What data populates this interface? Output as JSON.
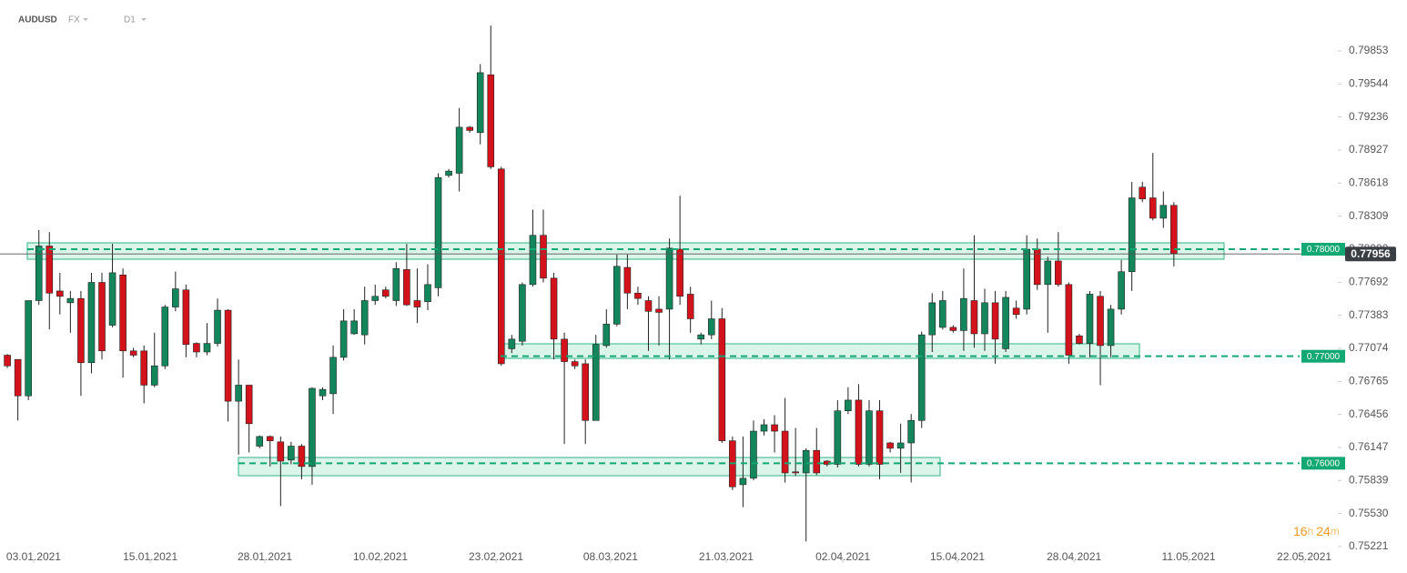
{
  "header": {
    "symbol": "AUDUSD",
    "market": "FX",
    "timeframe": "D1"
  },
  "countdown": [
    "16",
    "h",
    "24",
    "m"
  ],
  "chart_data": {
    "type": "candlestick",
    "up_color": "#13865c",
    "down_color": "#d3121b",
    "xlim": [
      -0.7,
      126.6
    ],
    "ylim": [
      0.75102,
      0.80329
    ],
    "xticks": [
      {
        "value": 2.5,
        "label": "03.01.2021"
      },
      {
        "value": 13.6,
        "label": "15.01.2021"
      },
      {
        "value": 24.5,
        "label": "28.01.2021"
      },
      {
        "value": 35.5,
        "label": "10.02.2021"
      },
      {
        "value": 46.5,
        "label": "23.02.2021"
      },
      {
        "value": 57.4,
        "label": "08.03.2021"
      },
      {
        "value": 68.4,
        "label": "21.03.2021"
      },
      {
        "value": 79.5,
        "label": "02.04.2021"
      },
      {
        "value": 90.4,
        "label": "15.04.2021"
      },
      {
        "value": 101.5,
        "label": "28.04.2021"
      },
      {
        "value": 112.4,
        "label": "11.05.2021"
      },
      {
        "value": 123.4,
        "label": "22.05.2021"
      }
    ],
    "yticks": [
      0.79853,
      0.79544,
      0.79236,
      0.78927,
      0.78618,
      0.78309,
      {
        "value": 0.78,
        "label": "0.78000"
      },
      0.77692,
      0.77383,
      0.77074,
      0.76765,
      0.76456,
      0.76147,
      0.75839,
      {
        "value": 0.7553,
        "label": "0.75530"
      },
      0.75221
    ],
    "levels": [
      {
        "value": 0.78,
        "label": "0.78000"
      },
      {
        "value": 0.77,
        "label": "0.77000"
      },
      {
        "value": 0.76,
        "label": "0.76000"
      }
    ],
    "level_color": "#12a873",
    "last_price": 0.77956,
    "open": [
      0.7701,
      0.7697,
      0.7663,
      0.7752,
      0.7803,
      0.7761,
      0.775,
      0.7754,
      0.7694,
      0.7769,
      0.7729,
      0.7776,
      0.7705,
      0.7705,
      0.7673,
      0.7691,
      0.7746,
      0.7762,
      0.7712,
      0.7704,
      0.7712,
      0.7743,
      0.7658,
      0.7673,
      0.7616,
      0.7625,
      0.762,
      0.7603,
      0.7616,
      0.7597,
      0.7663,
      0.7665,
      0.7699,
      0.7721,
      0.772,
      0.7752,
      0.7762,
      0.7752,
      0.7781,
      0.7752,
      0.7751,
      0.7764,
      0.7869,
      0.7871,
      0.7914,
      0.7909,
      0.7963,
      0.7875,
      0.7707,
      0.7714,
      0.7767,
      0.7813,
      0.7773,
      0.7716,
      0.7695,
      0.7693,
      0.764,
      0.771,
      0.773,
      0.7783,
      0.7759,
      0.7752,
      0.7744,
      0.7744,
      0.78,
      0.7758,
      0.7716,
      0.772,
      0.7735,
      0.7621,
      0.758,
      0.7586,
      0.763,
      0.7636,
      0.763,
      0.7592,
      0.7591,
      0.7612,
      0.7602,
      0.7599,
      0.7649,
      0.7659,
      0.7599,
      0.7649,
      0.7619,
      0.7614,
      0.7619,
      0.764,
      0.772,
      0.7727,
      0.7727,
      0.7724,
      0.7752,
      0.7721,
      0.775,
      0.7707,
      0.7745,
      0.7744,
      0.78,
      0.7767,
      0.7789,
      0.7767,
      0.7719,
      0.7712,
      0.7756,
      0.771,
      0.7744,
      0.7779,
      0.7858,
      0.7848,
      0.7829,
      0.7841
    ],
    "high": [
      0.7702,
      0.7697,
      0.7752,
      0.7818,
      0.7816,
      0.7778,
      0.7761,
      0.7761,
      0.7778,
      0.7778,
      0.7805,
      0.7782,
      0.7708,
      0.771,
      0.7722,
      0.7748,
      0.7779,
      0.7767,
      0.7713,
      0.7731,
      0.7754,
      0.7744,
      0.7697,
      0.7673,
      0.7626,
      0.7626,
      0.7625,
      0.762,
      0.7618,
      0.7671,
      0.7671,
      0.771,
      0.7744,
      0.7744,
      0.7765,
      0.7767,
      0.7765,
      0.7788,
      0.7805,
      0.7782,
      0.7786,
      0.7871,
      0.7875,
      0.7932,
      0.7915,
      0.7973,
      0.8009,
      0.7877,
      0.772,
      0.7769,
      0.7837,
      0.7837,
      0.7778,
      0.7722,
      0.7697,
      0.7697,
      0.772,
      0.7744,
      0.7795,
      0.7795,
      0.7765,
      0.7756,
      0.7756,
      0.781,
      0.785,
      0.7765,
      0.7722,
      0.7752,
      0.7745,
      0.7625,
      0.7625,
      0.764,
      0.7641,
      0.7645,
      0.7661,
      0.7633,
      0.7614,
      0.7633,
      0.7603,
      0.7659,
      0.7671,
      0.7674,
      0.7659,
      0.7659,
      0.762,
      0.7637,
      0.7646,
      0.7723,
      0.7759,
      0.7761,
      0.7729,
      0.7782,
      0.7813,
      0.7763,
      0.7761,
      0.7761,
      0.7752,
      0.7813,
      0.781,
      0.7793,
      0.7816,
      0.7769,
      0.7721,
      0.7761,
      0.7761,
      0.7748,
      0.779,
      0.7863,
      0.7863,
      0.789,
      0.7854,
      0.7844
    ],
    "low": [
      0.7689,
      0.764,
      0.7659,
      0.7748,
      0.7725,
      0.7739,
      0.7722,
      0.7663,
      0.7684,
      0.7697,
      0.7727,
      0.768,
      0.7699,
      0.7656,
      0.7671,
      0.7688,
      0.7742,
      0.7699,
      0.7699,
      0.7701,
      0.7709,
      0.7639,
      0.7608,
      0.761,
      0.7614,
      0.7597,
      0.756,
      0.7599,
      0.7585,
      0.758,
      0.7659,
      0.7646,
      0.7696,
      0.772,
      0.7711,
      0.7748,
      0.7754,
      0.7747,
      0.7747,
      0.7731,
      0.7743,
      0.7756,
      0.7867,
      0.7854,
      0.7909,
      0.7898,
      0.7875,
      0.7691,
      0.7703,
      0.771,
      0.7765,
      0.7769,
      0.7697,
      0.7618,
      0.7688,
      0.7618,
      0.764,
      0.7708,
      0.7728,
      0.7744,
      0.7748,
      0.7705,
      0.771,
      0.7697,
      0.7748,
      0.7722,
      0.7711,
      0.7716,
      0.7619,
      0.7575,
      0.7559,
      0.7584,
      0.7626,
      0.761,
      0.7582,
      0.7588,
      0.7527,
      0.7589,
      0.7597,
      0.7596,
      0.7646,
      0.7597,
      0.7597,
      0.7585,
      0.761,
      0.7591,
      0.7582,
      0.7633,
      0.7704,
      0.7725,
      0.7722,
      0.7705,
      0.7708,
      0.7705,
      0.7693,
      0.7704,
      0.7735,
      0.7739,
      0.7762,
      0.7722,
      0.7765,
      0.7693,
      0.7711,
      0.7699,
      0.7673,
      0.7699,
      0.7739,
      0.7761,
      0.7844,
      0.7827,
      0.782,
      0.7784
    ],
    "close": [
      0.7691,
      0.7663,
      0.7752,
      0.7803,
      0.7759,
      0.7756,
      0.7754,
      0.7694,
      0.7769,
      0.7705,
      0.7778,
      0.7705,
      0.7701,
      0.7673,
      0.7691,
      0.7746,
      0.7763,
      0.7711,
      0.7704,
      0.7712,
      0.7743,
      0.7658,
      0.7673,
      0.7637,
      0.7625,
      0.7621,
      0.7602,
      0.7616,
      0.7597,
      0.767,
      0.7669,
      0.7699,
      0.7733,
      0.7733,
      0.7752,
      0.7756,
      0.7756,
      0.7782,
      0.7748,
      0.7746,
      0.7767,
      0.7867,
      0.7873,
      0.7914,
      0.7911,
      0.7965,
      0.7877,
      0.7693,
      0.7716,
      0.7767,
      0.7813,
      0.7773,
      0.7716,
      0.7695,
      0.7691,
      0.764,
      0.7711,
      0.773,
      0.7784,
      0.7759,
      0.7754,
      0.7742,
      0.7741,
      0.7801,
      0.7756,
      0.7735,
      0.772,
      0.7735,
      0.7621,
      0.7578,
      0.7586,
      0.763,
      0.7636,
      0.763,
      0.7591,
      0.7591,
      0.7612,
      0.7591,
      0.7599,
      0.7649,
      0.7659,
      0.7599,
      0.7649,
      0.7599,
      0.7614,
      0.7619,
      0.764,
      0.772,
      0.775,
      0.7752,
      0.7724,
      0.7754,
      0.7721,
      0.775,
      0.7716,
      0.7755,
      0.7739,
      0.78,
      0.7767,
      0.7789,
      0.7767,
      0.7701,
      0.7712,
      0.7758,
      0.771,
      0.7744,
      0.7779,
      0.7848,
      0.7847,
      0.7829,
      0.7841,
      0.7796
    ]
  }
}
